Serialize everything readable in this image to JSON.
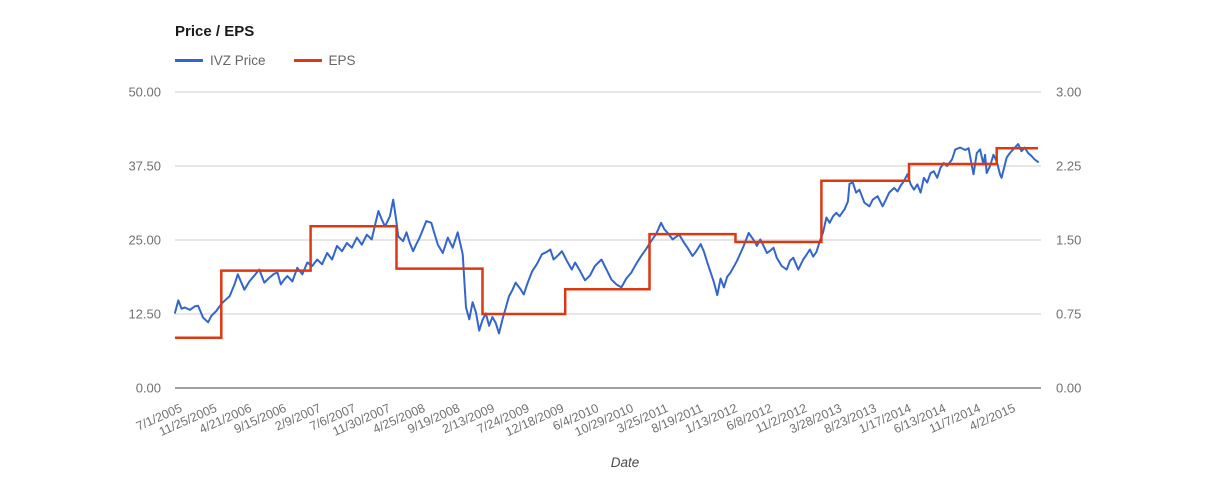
{
  "chart": {
    "title": "Price / EPS",
    "x_axis_title": "Date",
    "legend": [
      {
        "label": "IVZ Price",
        "color": "#3366cc"
      },
      {
        "label": "EPS",
        "color": "#dc3912"
      }
    ],
    "left_axis": {
      "ticks": [
        "0.00",
        "12.50",
        "25.00",
        "37.50",
        "50.00"
      ],
      "values": [
        0,
        12.5,
        25,
        37.5,
        50
      ],
      "min": 0,
      "max": 50
    },
    "right_axis": {
      "ticks": [
        "0.00",
        "0.75",
        "1.50",
        "2.25",
        "3.00"
      ],
      "values": [
        0,
        0.75,
        1.5,
        2.25,
        3
      ],
      "min": 0,
      "max": 3
    },
    "x_ticks": [
      "7/1/2005",
      "11/25/2005",
      "4/21/2006",
      "9/15/2006",
      "2/9/2007",
      "7/6/2007",
      "11/30/2007",
      "4/25/2008",
      "9/19/2008",
      "2/13/2009",
      "7/24/2009",
      "12/18/2009",
      "6/4/2010",
      "10/29/2010",
      "3/25/2011",
      "8/19/2011",
      "1/13/2012",
      "6/8/2012",
      "11/2/2012",
      "3/28/2013",
      "8/23/2013",
      "1/17/2014",
      "6/13/2014",
      "11/7/2014",
      "4/2/2015"
    ],
    "colors": {
      "gridline": "#cccccc",
      "baseline": "#424242",
      "tick_label": "#717171"
    }
  },
  "chart_data": {
    "type": "line",
    "title": "Price / EPS",
    "xlabel": "Date",
    "x_unit": "weeks_since_7/1/2005",
    "x_total_weeks": 522,
    "x_tick_every_weeks": 21,
    "left_ylim": [
      0,
      50
    ],
    "right_ylim": [
      0,
      3
    ],
    "grid": true,
    "legend_position": "top-left",
    "series": [
      {
        "name": "IVZ Price",
        "axis": "left",
        "color": "#3366cc",
        "points": [
          [
            0,
            12.7
          ],
          [
            2,
            14.8
          ],
          [
            4,
            13.4
          ],
          [
            6,
            13.6
          ],
          [
            9,
            13.2
          ],
          [
            12,
            13.8
          ],
          [
            14,
            13.9
          ],
          [
            17,
            11.9
          ],
          [
            20,
            11.1
          ],
          [
            22,
            12.2
          ],
          [
            25,
            13.0
          ],
          [
            28,
            14.2
          ],
          [
            31,
            15.0
          ],
          [
            33,
            15.5
          ],
          [
            36,
            17.5
          ],
          [
            38,
            19.2
          ],
          [
            42,
            16.6
          ],
          [
            45,
            18.0
          ],
          [
            48,
            19.0
          ],
          [
            51,
            20.0
          ],
          [
            54,
            17.8
          ],
          [
            57,
            18.6
          ],
          [
            60,
            19.3
          ],
          [
            62,
            19.5
          ],
          [
            64,
            17.5
          ],
          [
            66,
            18.3
          ],
          [
            68,
            18.9
          ],
          [
            71,
            18.0
          ],
          [
            74,
            20.3
          ],
          [
            77,
            19.2
          ],
          [
            80,
            21.2
          ],
          [
            83,
            20.6
          ],
          [
            86,
            21.7
          ],
          [
            89,
            20.9
          ],
          [
            92,
            22.8
          ],
          [
            95,
            21.7
          ],
          [
            98,
            24.0
          ],
          [
            101,
            23.1
          ],
          [
            104,
            24.5
          ],
          [
            107,
            23.7
          ],
          [
            110,
            25.4
          ],
          [
            113,
            24.2
          ],
          [
            116,
            25.9
          ],
          [
            119,
            25.1
          ],
          [
            121,
            27.5
          ],
          [
            123,
            29.9
          ],
          [
            125,
            28.5
          ],
          [
            127,
            27.3
          ],
          [
            130,
            29.0
          ],
          [
            132,
            31.8
          ],
          [
            134,
            28.0
          ],
          [
            135,
            25.6
          ],
          [
            138,
            24.8
          ],
          [
            140,
            26.3
          ],
          [
            142,
            24.5
          ],
          [
            144,
            23.1
          ],
          [
            146,
            24.3
          ],
          [
            148,
            25.4
          ],
          [
            150,
            26.8
          ],
          [
            152,
            28.2
          ],
          [
            155,
            27.9
          ],
          [
            157,
            26.0
          ],
          [
            159,
            24.2
          ],
          [
            162,
            22.8
          ],
          [
            165,
            25.4
          ],
          [
            168,
            23.7
          ],
          [
            171,
            26.3
          ],
          [
            174,
            22.6
          ],
          [
            176,
            13.6
          ],
          [
            178,
            11.6
          ],
          [
            180,
            14.5
          ],
          [
            182,
            12.8
          ],
          [
            184,
            9.7
          ],
          [
            186,
            11.5
          ],
          [
            188,
            12.6
          ],
          [
            190,
            10.5
          ],
          [
            192,
            12.0
          ],
          [
            194,
            11.0
          ],
          [
            196,
            9.2
          ],
          [
            198,
            11.5
          ],
          [
            200,
            13.5
          ],
          [
            202,
            15.5
          ],
          [
            204,
            16.5
          ],
          [
            206,
            17.8
          ],
          [
            209,
            16.7
          ],
          [
            211,
            15.8
          ],
          [
            213,
            17.5
          ],
          [
            216,
            19.7
          ],
          [
            219,
            21.0
          ],
          [
            222,
            22.6
          ],
          [
            225,
            23.0
          ],
          [
            227,
            23.4
          ],
          [
            229,
            21.7
          ],
          [
            232,
            22.5
          ],
          [
            234,
            23.1
          ],
          [
            237,
            21.5
          ],
          [
            240,
            20.0
          ],
          [
            242,
            21.2
          ],
          [
            245,
            19.8
          ],
          [
            248,
            18.2
          ],
          [
            251,
            19.0
          ],
          [
            254,
            20.6
          ],
          [
            258,
            21.7
          ],
          [
            261,
            20.0
          ],
          [
            264,
            18.3
          ],
          [
            267,
            17.5
          ],
          [
            270,
            17.0
          ],
          [
            273,
            18.5
          ],
          [
            276,
            19.5
          ],
          [
            279,
            21.0
          ],
          [
            282,
            22.3
          ],
          [
            285,
            23.5
          ],
          [
            288,
            24.8
          ],
          [
            291,
            26.0
          ],
          [
            294,
            27.9
          ],
          [
            296,
            26.8
          ],
          [
            298,
            26.2
          ],
          [
            301,
            25.1
          ],
          [
            303,
            25.5
          ],
          [
            305,
            25.9
          ],
          [
            308,
            24.5
          ],
          [
            310,
            23.7
          ],
          [
            313,
            22.3
          ],
          [
            315,
            23.0
          ],
          [
            318,
            24.3
          ],
          [
            320,
            23.0
          ],
          [
            322,
            21.2
          ],
          [
            324,
            19.5
          ],
          [
            326,
            17.8
          ],
          [
            328,
            15.7
          ],
          [
            330,
            18.5
          ],
          [
            332,
            17.0
          ],
          [
            334,
            18.8
          ],
          [
            336,
            19.5
          ],
          [
            340,
            21.5
          ],
          [
            344,
            24.0
          ],
          [
            347,
            26.2
          ],
          [
            350,
            25.0
          ],
          [
            352,
            24.0
          ],
          [
            354,
            25.1
          ],
          [
            356,
            24.0
          ],
          [
            358,
            22.8
          ],
          [
            360,
            23.2
          ],
          [
            362,
            23.7
          ],
          [
            364,
            22.0
          ],
          [
            367,
            20.6
          ],
          [
            370,
            20.0
          ],
          [
            372,
            21.5
          ],
          [
            374,
            22.0
          ],
          [
            377,
            20.0
          ],
          [
            380,
            21.7
          ],
          [
            382,
            22.5
          ],
          [
            384,
            23.4
          ],
          [
            386,
            22.2
          ],
          [
            388,
            23.0
          ],
          [
            390,
            24.8
          ],
          [
            392,
            26.3
          ],
          [
            394,
            28.8
          ],
          [
            396,
            27.9
          ],
          [
            398,
            29.0
          ],
          [
            400,
            29.6
          ],
          [
            402,
            29.0
          ],
          [
            405,
            30.2
          ],
          [
            407,
            31.5
          ],
          [
            408,
            34.5
          ],
          [
            410,
            34.7
          ],
          [
            412,
            33.0
          ],
          [
            414,
            33.5
          ],
          [
            417,
            31.3
          ],
          [
            420,
            30.7
          ],
          [
            422,
            31.8
          ],
          [
            425,
            32.4
          ],
          [
            428,
            30.7
          ],
          [
            430,
            31.8
          ],
          [
            432,
            33.0
          ],
          [
            435,
            33.8
          ],
          [
            437,
            33.2
          ],
          [
            439,
            34.2
          ],
          [
            441,
            35.0
          ],
          [
            443,
            36.1
          ],
          [
            445,
            34.4
          ],
          [
            447,
            33.5
          ],
          [
            449,
            34.4
          ],
          [
            451,
            33.0
          ],
          [
            453,
            35.5
          ],
          [
            455,
            34.7
          ],
          [
            457,
            36.3
          ],
          [
            459,
            36.6
          ],
          [
            461,
            35.5
          ],
          [
            463,
            37.2
          ],
          [
            465,
            38.0
          ],
          [
            467,
            37.5
          ],
          [
            470,
            38.6
          ],
          [
            472,
            40.3
          ],
          [
            475,
            40.6
          ],
          [
            478,
            40.2
          ],
          [
            480,
            40.5
          ],
          [
            482,
            37.5
          ],
          [
            483,
            36.1
          ],
          [
            485,
            39.7
          ],
          [
            487,
            40.3
          ],
          [
            489,
            37.8
          ],
          [
            490,
            39.4
          ],
          [
            491,
            36.3
          ],
          [
            493,
            37.5
          ],
          [
            495,
            39.4
          ],
          [
            497,
            38.3
          ],
          [
            499,
            36.1
          ],
          [
            500,
            35.5
          ],
          [
            503,
            38.9
          ],
          [
            505,
            39.7
          ],
          [
            507,
            40.3
          ],
          [
            510,
            41.2
          ],
          [
            512,
            40.0
          ],
          [
            514,
            40.6
          ],
          [
            516,
            39.7
          ],
          [
            518,
            39.2
          ],
          [
            520,
            38.6
          ],
          [
            522,
            38.2
          ]
        ]
      },
      {
        "name": "EPS",
        "axis": "right",
        "color": "#dc3912",
        "step_segments": [
          {
            "from_week": 0,
            "to_week": 28,
            "value": 0.51
          },
          {
            "from_week": 28,
            "to_week": 82,
            "value": 1.19
          },
          {
            "from_week": 82,
            "to_week": 134,
            "value": 1.64
          },
          {
            "from_week": 134,
            "to_week": 186,
            "value": 1.21
          },
          {
            "from_week": 186,
            "to_week": 236,
            "value": 0.75
          },
          {
            "from_week": 236,
            "to_week": 287,
            "value": 1.0
          },
          {
            "from_week": 287,
            "to_week": 339,
            "value": 1.56
          },
          {
            "from_week": 339,
            "to_week": 391,
            "value": 1.48
          },
          {
            "from_week": 391,
            "to_week": 444,
            "value": 2.1
          },
          {
            "from_week": 444,
            "to_week": 497,
            "value": 2.27
          },
          {
            "from_week": 497,
            "to_week": 522,
            "value": 2.43
          }
        ]
      }
    ]
  }
}
